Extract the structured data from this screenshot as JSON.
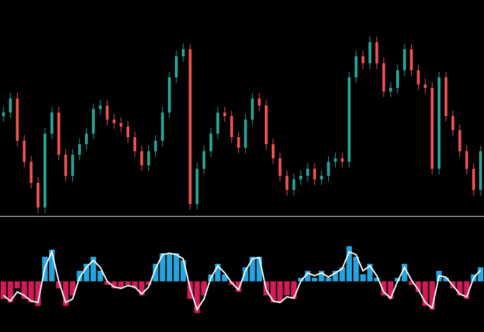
{
  "chart_data": [
    {
      "type": "candlestick",
      "up_color": "#26a69a",
      "down_color": "#ef5350",
      "ylim": [
        0,
        305
      ],
      "open": [
        140,
        145,
        165,
        105,
        75,
        45,
        10,
        115,
        145,
        85,
        55,
        85,
        100,
        115,
        150,
        155,
        135,
        130,
        125,
        110,
        90,
        70,
        90,
        105,
        145,
        195,
        225,
        235,
        15,
        65,
        90,
        115,
        145,
        140,
        110,
        95,
        135,
        165,
        155,
        100,
        80,
        55,
        35,
        50,
        55,
        65,
        50,
        55,
        75,
        80,
        75,
        195,
        225,
        215,
        245,
        215,
        175,
        180,
        205,
        235,
        205,
        185,
        180,
        65,
        195,
        140,
        120,
        90,
        65,
        35
      ],
      "high": [
        153,
        173,
        173,
        113,
        83,
        53,
        123,
        153,
        153,
        93,
        93,
        108,
        123,
        158,
        163,
        163,
        143,
        138,
        133,
        118,
        98,
        98,
        113,
        153,
        203,
        233,
        243,
        243,
        73,
        98,
        123,
        153,
        153,
        148,
        118,
        143,
        173,
        173,
        163,
        108,
        88,
        63,
        58,
        63,
        73,
        73,
        63,
        83,
        88,
        88,
        203,
        233,
        233,
        253,
        253,
        223,
        188,
        213,
        243,
        243,
        213,
        193,
        188,
        203,
        203,
        148,
        128,
        98,
        73,
        98
      ],
      "low": [
        132,
        137,
        97,
        67,
        37,
        2,
        2,
        107,
        77,
        47,
        47,
        77,
        92,
        107,
        142,
        127,
        122,
        117,
        102,
        82,
        62,
        62,
        82,
        97,
        137,
        187,
        217,
        7,
        7,
        57,
        82,
        107,
        132,
        102,
        87,
        87,
        127,
        147,
        92,
        72,
        47,
        27,
        27,
        42,
        47,
        42,
        42,
        47,
        67,
        67,
        67,
        187,
        207,
        207,
        207,
        167,
        167,
        172,
        197,
        197,
        177,
        172,
        57,
        57,
        132,
        112,
        82,
        57,
        27,
        27
      ],
      "close": [
        145,
        165,
        105,
        75,
        45,
        10,
        115,
        145,
        85,
        55,
        85,
        100,
        115,
        150,
        155,
        135,
        130,
        125,
        110,
        90,
        70,
        90,
        105,
        145,
        195,
        225,
        235,
        15,
        65,
        90,
        115,
        145,
        140,
        110,
        95,
        135,
        165,
        155,
        100,
        80,
        55,
        35,
        50,
        55,
        65,
        50,
        55,
        75,
        80,
        75,
        195,
        225,
        215,
        245,
        215,
        175,
        180,
        205,
        235,
        205,
        185,
        180,
        65,
        195,
        140,
        120,
        90,
        65,
        35,
        90
      ]
    },
    {
      "type": "oscillator",
      "positive_color": "#29b6f6",
      "negative_color": "#e91e63",
      "line_color": "#ffffff",
      "ylim": [
        -72,
        90
      ],
      "values": [
        -25,
        -30,
        -10,
        -25,
        -30,
        -35,
        35,
        45,
        -10,
        -35,
        -20,
        15,
        25,
        35,
        15,
        -5,
        -10,
        -10,
        -5,
        -10,
        -20,
        -5,
        25,
        40,
        40,
        40,
        30,
        -25,
        -45,
        -20,
        10,
        25,
        10,
        -5,
        -15,
        20,
        35,
        35,
        -20,
        -30,
        -30,
        -20,
        -25,
        5,
        15,
        5,
        15,
        5,
        15,
        20,
        50,
        35,
        10,
        25,
        5,
        -20,
        -25,
        5,
        25,
        -5,
        -15,
        -35,
        -40,
        15,
        5,
        -10,
        -20,
        -25,
        10,
        20
      ],
      "signal": [
        -20,
        -28,
        -15,
        -20,
        -28,
        -30,
        20,
        42,
        0,
        -30,
        -25,
        5,
        20,
        30,
        20,
        0,
        -8,
        -10,
        -6,
        -8,
        -18,
        -8,
        18,
        38,
        40,
        38,
        32,
        -10,
        -40,
        -25,
        5,
        22,
        12,
        -2,
        -12,
        15,
        32,
        34,
        -12,
        -28,
        -30,
        -22,
        -24,
        0,
        12,
        8,
        12,
        6,
        12,
        18,
        42,
        38,
        15,
        22,
        8,
        -15,
        -24,
        0,
        20,
        2,
        -12,
        -30,
        -38,
        8,
        6,
        -6,
        -18,
        -22,
        5,
        16
      ]
    }
  ]
}
